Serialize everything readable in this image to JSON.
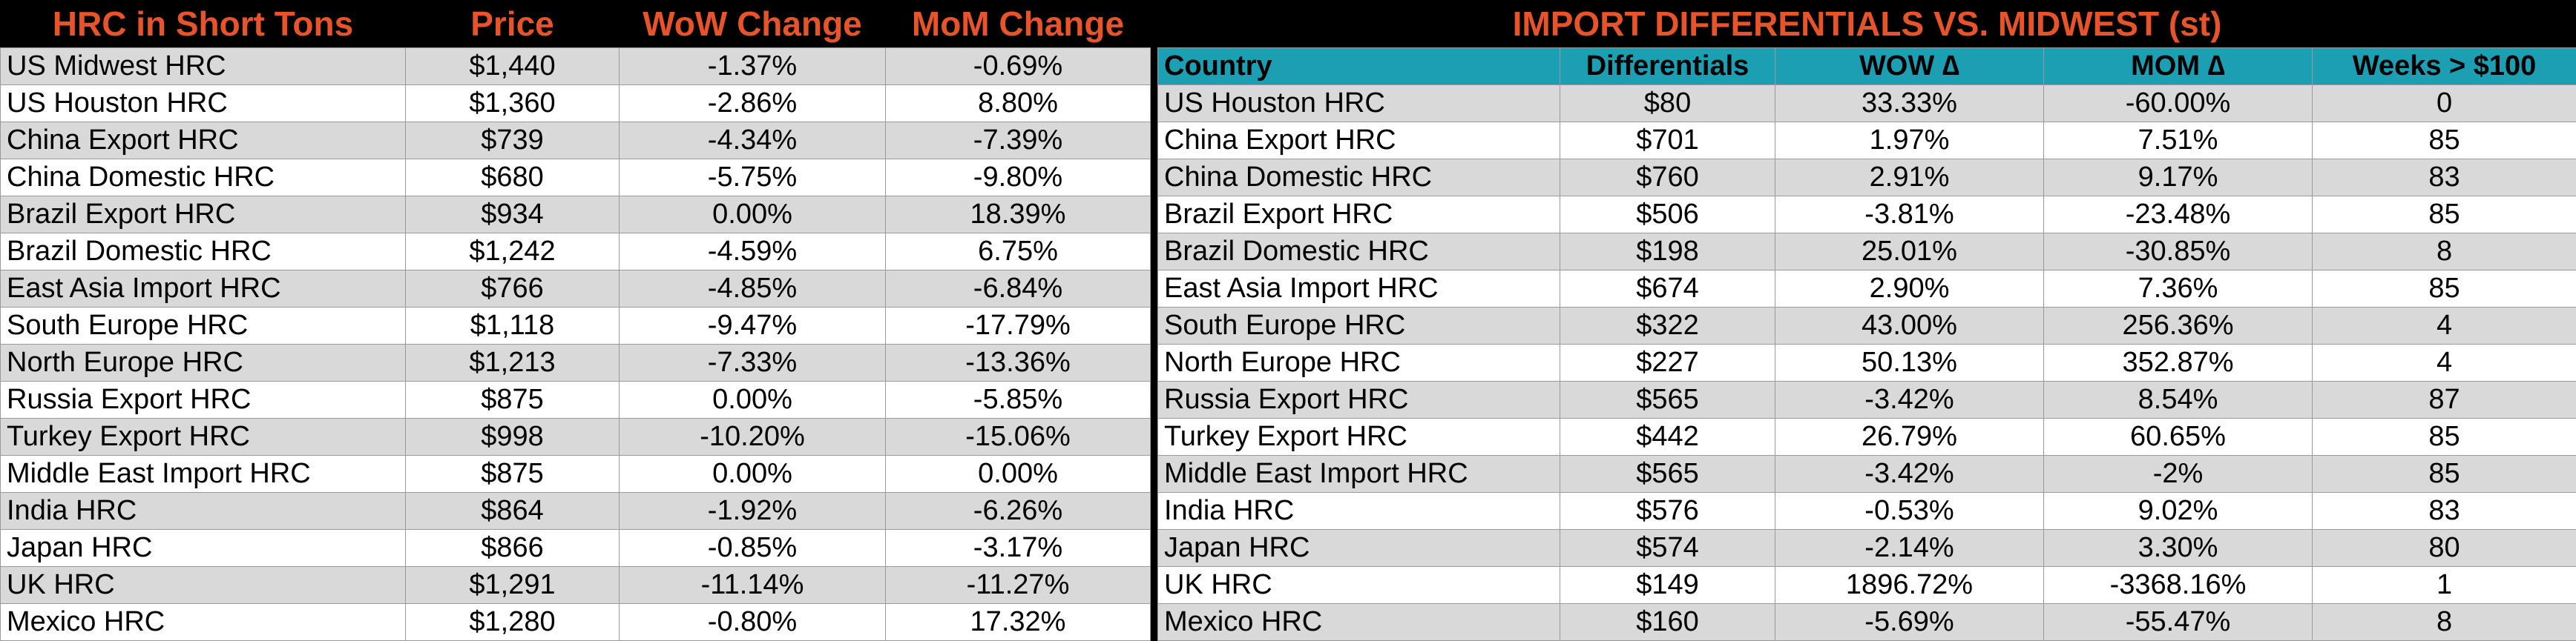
{
  "left": {
    "headers": [
      "HRC in Short Tons",
      "Price",
      "WoW Change",
      "MoM Change"
    ],
    "rows": [
      [
        "US Midwest HRC",
        "$1,440",
        "-1.37%",
        "-0.69%"
      ],
      [
        "US Houston HRC",
        "$1,360",
        "-2.86%",
        "8.80%"
      ],
      [
        "China Export HRC",
        "$739",
        "-4.34%",
        "-7.39%"
      ],
      [
        "China Domestic HRC",
        "$680",
        "-5.75%",
        "-9.80%"
      ],
      [
        "Brazil Export HRC",
        "$934",
        "0.00%",
        "18.39%"
      ],
      [
        "Brazil Domestic HRC",
        "$1,242",
        "-4.59%",
        "6.75%"
      ],
      [
        "East Asia Import HRC",
        "$766",
        "-4.85%",
        "-6.84%"
      ],
      [
        "South Europe HRC",
        "$1,118",
        "-9.47%",
        "-17.79%"
      ],
      [
        "North Europe HRC",
        "$1,213",
        "-7.33%",
        "-13.36%"
      ],
      [
        "Russia Export HRC",
        "$875",
        "0.00%",
        "-5.85%"
      ],
      [
        "Turkey Export HRC",
        "$998",
        "-10.20%",
        "-15.06%"
      ],
      [
        "Middle East Import HRC",
        "$875",
        "0.00%",
        "0.00%"
      ],
      [
        "India HRC",
        "$864",
        "-1.92%",
        "-6.26%"
      ],
      [
        "Japan HRC",
        "$866",
        "-0.85%",
        "-3.17%"
      ],
      [
        "UK HRC",
        "$1,291",
        "-11.14%",
        "-11.27%"
      ],
      [
        "Mexico HRC",
        "$1,280",
        "-0.80%",
        "17.32%"
      ]
    ]
  },
  "right": {
    "title": "IMPORT DIFFERENTIALS VS. MIDWEST (st)",
    "headers": [
      "Country",
      "Differentials",
      "WOW ∆",
      "MOM ∆",
      "Weeks > $100"
    ],
    "rows": [
      [
        "US Houston HRC",
        "$80",
        "33.33%",
        "-60.00%",
        "0"
      ],
      [
        "China Export HRC",
        "$701",
        "1.97%",
        "7.51%",
        "85"
      ],
      [
        "China Domestic HRC",
        "$760",
        "2.91%",
        "9.17%",
        "83"
      ],
      [
        "Brazil Export HRC",
        "$506",
        "-3.81%",
        "-23.48%",
        "85"
      ],
      [
        "Brazil Domestic HRC",
        "$198",
        "25.01%",
        "-30.85%",
        "8"
      ],
      [
        "East Asia Import HRC",
        "$674",
        "2.90%",
        "7.36%",
        "85"
      ],
      [
        "South Europe HRC",
        "$322",
        "43.00%",
        "256.36%",
        "4"
      ],
      [
        "North Europe HRC",
        "$227",
        "50.13%",
        "352.87%",
        "4"
      ],
      [
        "Russia Export HRC",
        "$565",
        "-3.42%",
        "8.54%",
        "87"
      ],
      [
        "Turkey Export HRC",
        "$442",
        "26.79%",
        "60.65%",
        "85"
      ],
      [
        "Middle East Import HRC",
        "$565",
        "-3.42%",
        "-2%",
        "85"
      ],
      [
        "India HRC",
        "$576",
        "-0.53%",
        "9.02%",
        "83"
      ],
      [
        "Japan HRC",
        "$574",
        "-2.14%",
        "3.30%",
        "80"
      ],
      [
        "UK HRC",
        "$149",
        "1896.72%",
        "-3368.16%",
        "1"
      ],
      [
        "Mexico HRC",
        "$160",
        "-5.69%",
        "-55.47%",
        "8"
      ]
    ]
  }
}
